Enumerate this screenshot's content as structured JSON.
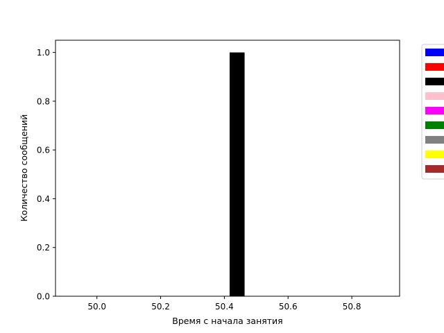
{
  "chart_data": {
    "type": "bar",
    "title": "",
    "xlabel": "Время с начала занятия",
    "ylabel": "Количество сообщений",
    "xlim": [
      49.87,
      50.95
    ],
    "ylim": [
      0.0,
      1.05
    ],
    "x_ticks": [
      50.0,
      50.2,
      50.4,
      50.6,
      50.8
    ],
    "x_tick_labels": [
      "50.0",
      "50.2",
      "50.4",
      "50.6",
      "50.8"
    ],
    "y_ticks": [
      0.0,
      0.2,
      0.4,
      0.6,
      0.8,
      1.0
    ],
    "y_tick_labels": [
      "0.0",
      "0.2",
      "0.4",
      "0.6",
      "0.8",
      "1.0"
    ],
    "bars": [
      {
        "x": 50.44,
        "width": 0.047,
        "value": 1.0,
        "color": "#000000"
      }
    ],
    "legend": {
      "placement": "outside-right-top",
      "swatches": [
        "#0000ff",
        "#ff0000",
        "#000000",
        "#ffc0cb",
        "#ff00ff",
        "#008000",
        "#808080",
        "#ffff00",
        "#a52a2a"
      ]
    },
    "grid": false
  }
}
